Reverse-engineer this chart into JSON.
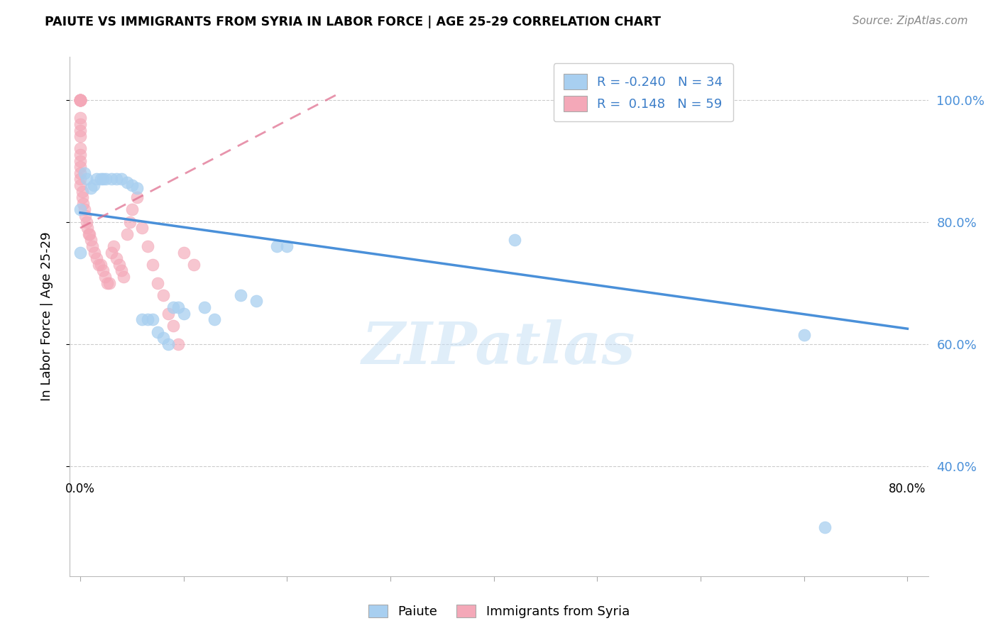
{
  "title": "PAIUTE VS IMMIGRANTS FROM SYRIA IN LABOR FORCE | AGE 25-29 CORRELATION CHART",
  "source": "Source: ZipAtlas.com",
  "ylabel_left": "In Labor Force | Age 25-29",
  "legend_r": [
    -0.24,
    0.148
  ],
  "legend_n": [
    34,
    59
  ],
  "blue_color": "#A8CFF0",
  "pink_color": "#F4A8B8",
  "blue_line_color": "#4A90D9",
  "pink_line_color": "#E07090",
  "watermark_text": "ZIPatlas",
  "blue_scatter_x": [
    0.0,
    0.0,
    0.004,
    0.006,
    0.01,
    0.013,
    0.016,
    0.02,
    0.022,
    0.025,
    0.03,
    0.035,
    0.04,
    0.045,
    0.05,
    0.055,
    0.06,
    0.065,
    0.07,
    0.075,
    0.08,
    0.085,
    0.09,
    0.095,
    0.1,
    0.12,
    0.13,
    0.155,
    0.17,
    0.19,
    0.2,
    0.42,
    0.7,
    0.72
  ],
  "blue_scatter_y": [
    0.82,
    0.75,
    0.88,
    0.87,
    0.855,
    0.86,
    0.87,
    0.87,
    0.87,
    0.87,
    0.87,
    0.87,
    0.87,
    0.865,
    0.86,
    0.855,
    0.64,
    0.64,
    0.64,
    0.62,
    0.61,
    0.6,
    0.66,
    0.66,
    0.65,
    0.66,
    0.64,
    0.68,
    0.67,
    0.76,
    0.76,
    0.77,
    0.615,
    0.3
  ],
  "pink_scatter_x": [
    0.0,
    0.0,
    0.0,
    0.0,
    0.0,
    0.0,
    0.0,
    0.0,
    0.0,
    0.0,
    0.0,
    0.0,
    0.0,
    0.0,
    0.0,
    0.0,
    0.0,
    0.0,
    0.0,
    0.0,
    0.002,
    0.002,
    0.003,
    0.004,
    0.005,
    0.006,
    0.007,
    0.008,
    0.009,
    0.01,
    0.012,
    0.014,
    0.016,
    0.018,
    0.02,
    0.022,
    0.024,
    0.026,
    0.028,
    0.03,
    0.032,
    0.035,
    0.038,
    0.04,
    0.042,
    0.045,
    0.048,
    0.05,
    0.055,
    0.06,
    0.065,
    0.07,
    0.075,
    0.08,
    0.085,
    0.09,
    0.095,
    0.1,
    0.11
  ],
  "pink_scatter_y": [
    1.0,
    1.0,
    1.0,
    1.0,
    1.0,
    1.0,
    1.0,
    1.0,
    1.0,
    0.97,
    0.96,
    0.95,
    0.94,
    0.92,
    0.91,
    0.9,
    0.89,
    0.88,
    0.87,
    0.86,
    0.85,
    0.84,
    0.83,
    0.82,
    0.81,
    0.8,
    0.79,
    0.78,
    0.78,
    0.77,
    0.76,
    0.75,
    0.74,
    0.73,
    0.73,
    0.72,
    0.71,
    0.7,
    0.7,
    0.75,
    0.76,
    0.74,
    0.73,
    0.72,
    0.71,
    0.78,
    0.8,
    0.82,
    0.84,
    0.79,
    0.76,
    0.73,
    0.7,
    0.68,
    0.65,
    0.63,
    0.6,
    0.75,
    0.73
  ],
  "xlim": [
    -0.01,
    0.82
  ],
  "ylim": [
    0.22,
    1.07
  ],
  "xtick_positions": [
    0.0,
    0.1,
    0.2,
    0.3,
    0.4,
    0.5,
    0.6,
    0.7,
    0.8
  ],
  "xtick_labels": [
    "0.0%",
    "",
    "",
    "",
    "",
    "",
    "",
    "",
    "80.0%"
  ],
  "ytick_vals": [
    0.4,
    0.6,
    0.8,
    1.0
  ],
  "blue_trend_x": [
    0.0,
    0.8
  ],
  "blue_trend_y": [
    0.815,
    0.625
  ],
  "pink_trend_x": [
    0.0,
    0.25
  ],
  "pink_trend_y": [
    0.79,
    1.01
  ]
}
